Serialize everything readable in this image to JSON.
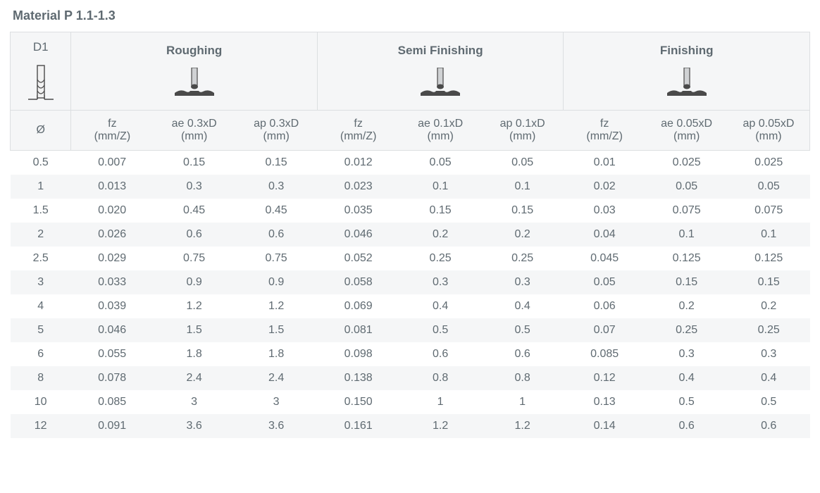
{
  "title": "Material P 1.1-1.3",
  "colors": {
    "text": "#5f6a71",
    "border": "#dcdfe1",
    "band": "#f5f6f7",
    "icon_dark": "#4a4a4a",
    "icon_grey": "#d0d2d4"
  },
  "fonts": {
    "title_size_pt": 14,
    "header_group_size_pt": 13,
    "body_size_pt": 12
  },
  "header": {
    "d1_label": "D1",
    "diameter_symbol": "Ø",
    "groups": [
      {
        "label": "Roughing",
        "ae_mult": "0.3xD",
        "ap_mult": "0.3xD"
      },
      {
        "label": "Semi Finishing",
        "ae_mult": "0.1xD",
        "ap_mult": "0.1xD"
      },
      {
        "label": "Finishing",
        "ae_mult": "0.05xD",
        "ap_mult": "0.05xD"
      }
    ],
    "sub": {
      "fz": {
        "l1": "fz",
        "l2": "(mm/Z)"
      },
      "ae_prefix": "ae ",
      "ap_prefix": "ap ",
      "unit_mm": "(mm)"
    }
  },
  "rows": [
    {
      "d": "0.5",
      "v": [
        "0.007",
        "0.15",
        "0.15",
        "0.012",
        "0.05",
        "0.05",
        "0.01",
        "0.025",
        "0.025"
      ]
    },
    {
      "d": "1",
      "v": [
        "0.013",
        "0.3",
        "0.3",
        "0.023",
        "0.1",
        "0.1",
        "0.02",
        "0.05",
        "0.05"
      ]
    },
    {
      "d": "1.5",
      "v": [
        "0.020",
        "0.45",
        "0.45",
        "0.035",
        "0.15",
        "0.15",
        "0.03",
        "0.075",
        "0.075"
      ]
    },
    {
      "d": "2",
      "v": [
        "0.026",
        "0.6",
        "0.6",
        "0.046",
        "0.2",
        "0.2",
        "0.04",
        "0.1",
        "0.1"
      ]
    },
    {
      "d": "2.5",
      "v": [
        "0.029",
        "0.75",
        "0.75",
        "0.052",
        "0.25",
        "0.25",
        "0.045",
        "0.125",
        "0.125"
      ]
    },
    {
      "d": "3",
      "v": [
        "0.033",
        "0.9",
        "0.9",
        "0.058",
        "0.3",
        "0.3",
        "0.05",
        "0.15",
        "0.15"
      ]
    },
    {
      "d": "4",
      "v": [
        "0.039",
        "1.2",
        "1.2",
        "0.069",
        "0.4",
        "0.4",
        "0.06",
        "0.2",
        "0.2"
      ]
    },
    {
      "d": "5",
      "v": [
        "0.046",
        "1.5",
        "1.5",
        "0.081",
        "0.5",
        "0.5",
        "0.07",
        "0.25",
        "0.25"
      ]
    },
    {
      "d": "6",
      "v": [
        "0.055",
        "1.8",
        "1.8",
        "0.098",
        "0.6",
        "0.6",
        "0.085",
        "0.3",
        "0.3"
      ]
    },
    {
      "d": "8",
      "v": [
        "0.078",
        "2.4",
        "2.4",
        "0.138",
        "0.8",
        "0.8",
        "0.12",
        "0.4",
        "0.4"
      ]
    },
    {
      "d": "10",
      "v": [
        "0.085",
        "3",
        "3",
        "0.150",
        "1",
        "1",
        "0.13",
        "0.5",
        "0.5"
      ]
    },
    {
      "d": "12",
      "v": [
        "0.091",
        "3.6",
        "3.6",
        "0.161",
        "1.2",
        "1.2",
        "0.14",
        "0.6",
        "0.6"
      ]
    }
  ]
}
